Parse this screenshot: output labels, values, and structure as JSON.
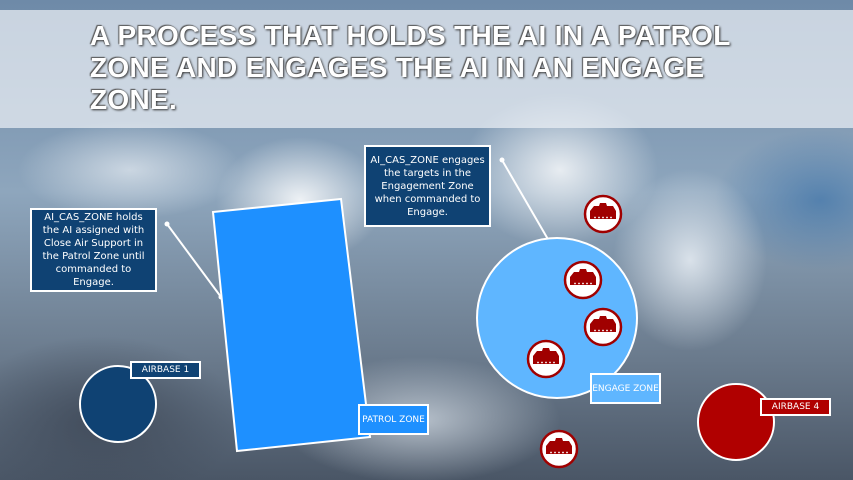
{
  "title": "A PROCESS THAT HOLDS THE AI IN A PATROL ZONE AND ENGAGES THE AI IN AN ENGAGE ZONE.",
  "callouts": {
    "patrol": "AI_CAS_ZONE holds the AI assigned with Close Air Support in the Patrol Zone until commanded to Engage.",
    "engage": "AI_CAS_ZONE engages the targets in the Engagement Zone when commanded to Engage."
  },
  "labels": {
    "airbase1": "AIRBASE 1",
    "patrol_zone": "PATROL ZONE",
    "engage_zone": "ENGAGE ZONE",
    "airbase4": "AIRBASE 4"
  },
  "colors": {
    "patrol_zone": "#1e90ff",
    "engage_zone": "#5fb6ff",
    "airbase_blue": "#0f4273",
    "airbase_red": "#b00000",
    "target": "#a00000"
  },
  "icons": {
    "target": "tank-icon"
  }
}
